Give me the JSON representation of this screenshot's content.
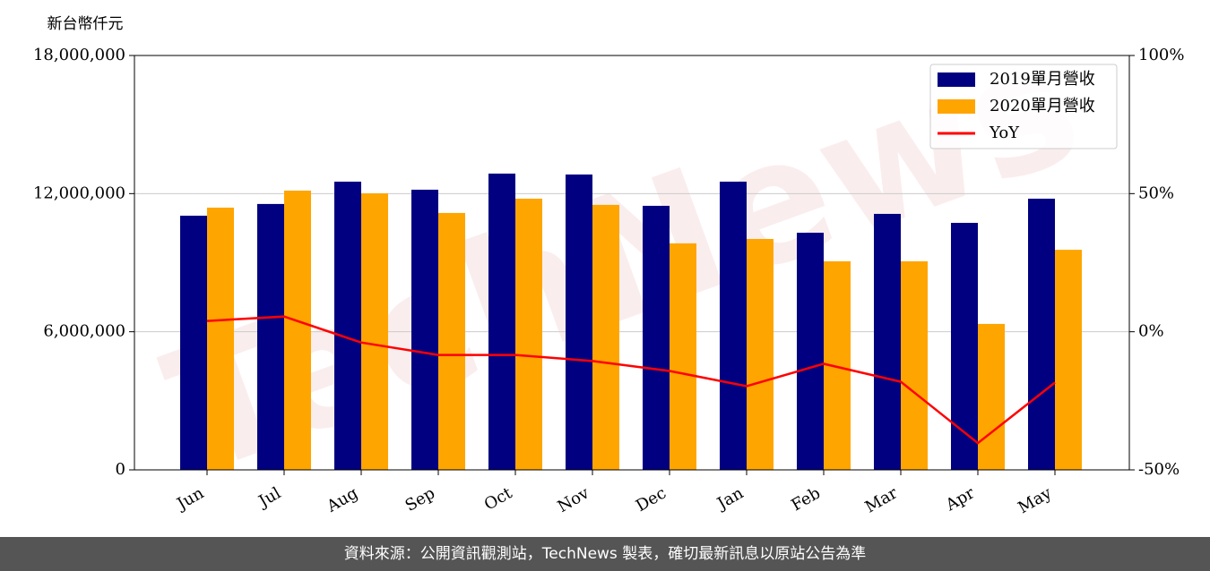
{
  "chart_data": {
    "type": "bar",
    "y_label": "新台幣仟元",
    "watermark": "TechNews",
    "categories": [
      "Jun",
      "Jul",
      "Aug",
      "Sep",
      "Oct",
      "Nov",
      "Dec",
      "Jan",
      "Feb",
      "Mar",
      "Apr",
      "May"
    ],
    "series": [
      {
        "name": "2019單月營收",
        "color": "#000080",
        "values": [
          11040000,
          11550000,
          12520000,
          12170000,
          12870000,
          12830000,
          11470000,
          12520000,
          10300000,
          11120000,
          10730000,
          11780000
        ]
      },
      {
        "name": "2020單月營收",
        "color": "#ffa500",
        "values": [
          11390000,
          12130000,
          12010000,
          11160000,
          11780000,
          11510000,
          9840000,
          10030000,
          9060000,
          9060000,
          6340000,
          9560000
        ]
      },
      {
        "name": "YoY",
        "type": "line",
        "axis": "y2",
        "color": "#ff0000",
        "values": [
          3.9,
          5.5,
          -3.9,
          -8.4,
          -8.4,
          -10.6,
          -14.2,
          -19.7,
          -11.6,
          -18.1,
          -40.3,
          -18.4
        ]
      }
    ],
    "ylim": [
      0,
      18000000
    ],
    "yticks": [
      0,
      {
        "value": 6000000,
        "label": "6,000,000"
      },
      {
        "value": 12000000,
        "label": "12,000,000"
      },
      {
        "value": 18000000,
        "label": "18,000,000"
      }
    ],
    "y2lim": [
      -50,
      100
    ],
    "y2ticks": [
      {
        "value": -50,
        "label": "-50%"
      },
      {
        "value": 0,
        "label": "0%"
      },
      {
        "value": 50,
        "label": "50%"
      },
      {
        "value": 100,
        "label": "100%"
      }
    ],
    "grid": true,
    "legend": "upper right"
  },
  "footer": "資料來源：公開資訊觀測站，TechNews 製表，確切最新訊息以原站公告為準"
}
